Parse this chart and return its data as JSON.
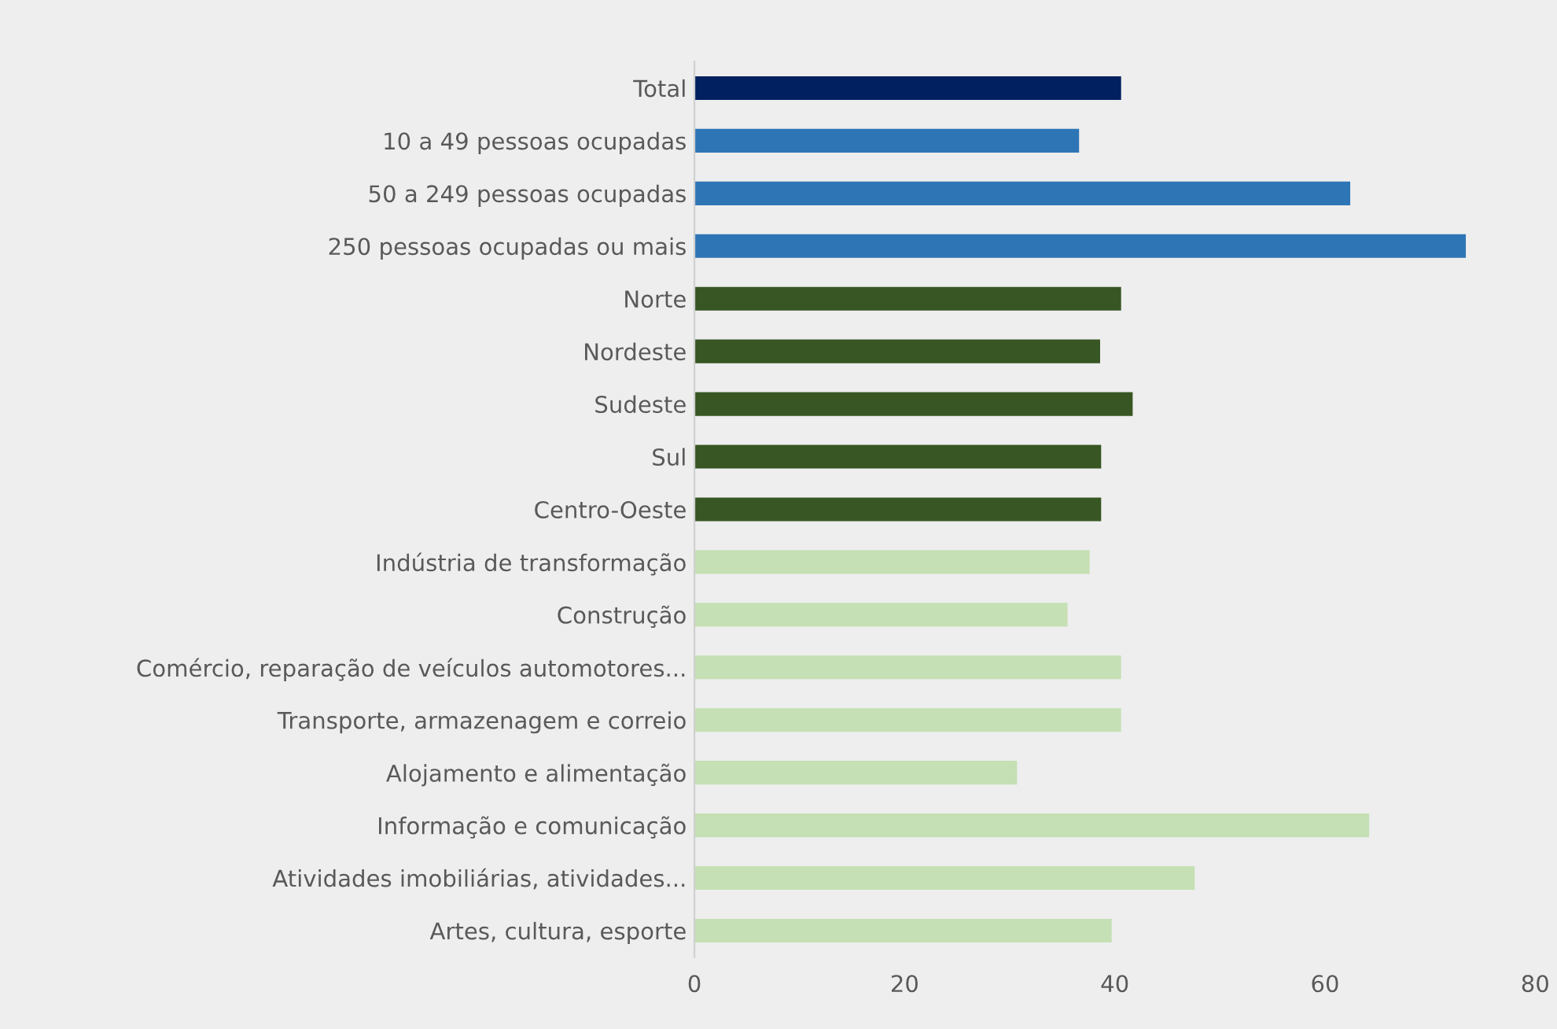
{
  "chart_data": {
    "type": "bar",
    "orientation": "horizontal",
    "categories": [
      "Total",
      "10 a 49 pessoas ocupadas",
      "50 a 249 pessoas ocupadas",
      "250 pessoas ocupadas ou mais",
      "Norte",
      "Nordeste",
      "Sudeste",
      "Sul",
      "Centro-Oeste",
      "Indústria de transformação",
      "Construção",
      "Comércio, reparação de veículos automotores...",
      "Transporte, armazenagem e correio",
      "Alojamento e alimentação",
      "Informação e comunicação",
      "Atividades imobiliárias, atividades...",
      "Artes, cultura, esporte"
    ],
    "values": [
      40.6,
      36.6,
      62.4,
      73.4,
      40.6,
      38.6,
      41.7,
      38.7,
      38.7,
      37.6,
      35.5,
      40.6,
      40.6,
      30.7,
      64.2,
      47.6,
      39.7
    ],
    "colors": [
      "#002060",
      "#2e75b6",
      "#2e75b6",
      "#2e75b6",
      "#375623",
      "#375623",
      "#375623",
      "#375623",
      "#375623",
      "#c5e0b4",
      "#c5e0b4",
      "#c5e0b4",
      "#c5e0b4",
      "#c5e0b4",
      "#c5e0b4",
      "#c5e0b4",
      "#c5e0b4"
    ],
    "xlim": [
      0,
      80
    ],
    "xticks": [
      0,
      20,
      40,
      60,
      80
    ],
    "grid": false,
    "legend": false
  }
}
